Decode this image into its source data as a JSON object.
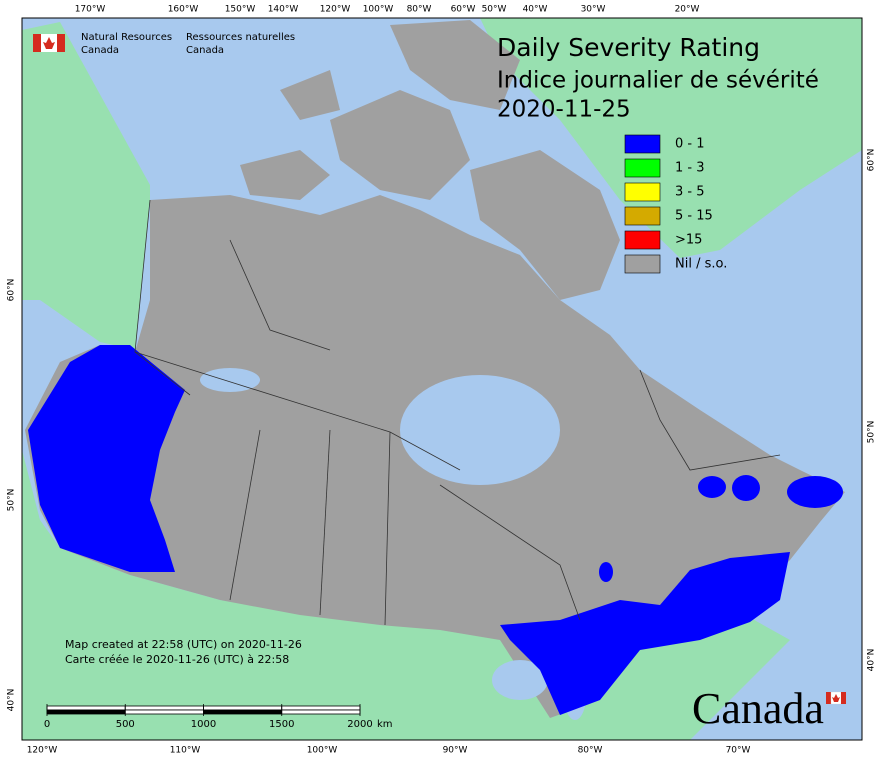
{
  "header": {
    "agency_en": [
      "Natural Resources",
      "Canada"
    ],
    "agency_fr": [
      "Ressources naturelles",
      "Canada"
    ]
  },
  "title": [
    "Daily Severity Rating",
    "Indice journalier de sévérité",
    "2020-11-25"
  ],
  "legend": [
    {
      "label": "0 - 1",
      "color": "#0000ff"
    },
    {
      "label": "1 - 3",
      "color": "#00ff00"
    },
    {
      "label": "3 - 5",
      "color": "#ffff00"
    },
    {
      "label": "5 - 15",
      "color": "#d4aa00"
    },
    {
      "label": ">15",
      "color": "#ff0000"
    },
    {
      "label": "Nil / s.o.",
      "color": "#a0a0a0"
    }
  ],
  "graticule": {
    "top": [
      "170°W",
      "160°W",
      "150°W",
      "140°W",
      "120°W",
      "100°W",
      "80°W",
      "60°W",
      "50°W",
      "40°W",
      "30°W",
      "20°W"
    ],
    "bottom": [
      "120°W",
      "110°W",
      "100°W",
      "90°W",
      "80°W",
      "70°W"
    ],
    "left": [
      "60°N",
      "50°N",
      "40°N"
    ],
    "right": [
      "60°N",
      "50°N",
      "40°N"
    ]
  },
  "footer": [
    "Map created at 22:58 (UTC) on 2020-11-26",
    "Carte créée le 2020-11-26 (UTC) à 22:58"
  ],
  "scale": {
    "ticks": [
      0,
      500,
      1000,
      1500,
      2000
    ],
    "unit": "km"
  },
  "wordmark": "Canada"
}
